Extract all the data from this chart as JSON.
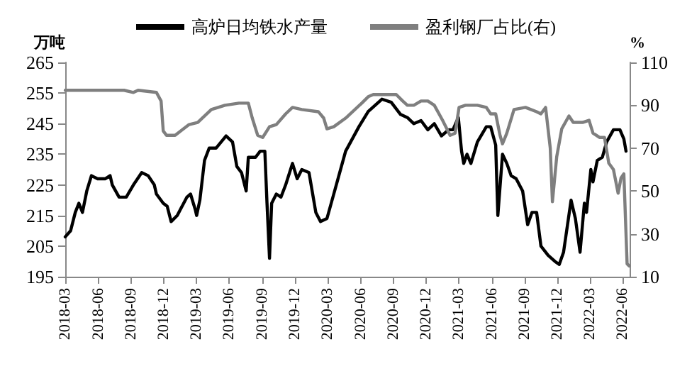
{
  "chart_data": {
    "type": "line",
    "ylabel": "万吨",
    "y2label": "%",
    "legend": "top",
    "marker": "none",
    "line_style": "solid",
    "grid": false,
    "xlim": [
      "2018-03-01",
      "2022-06-20"
    ],
    "xticks": [
      "2018-03",
      "2018-06",
      "2018-09",
      "2018-12",
      "2019-03",
      "2019-06",
      "2019-09",
      "2019-12",
      "2020-03",
      "2020-06",
      "2020-09",
      "2020-12",
      "2021-03",
      "2021-06",
      "2021-09",
      "2021-12",
      "2022-03",
      "2022-06"
    ],
    "ylim": [
      195,
      265
    ],
    "yticks": [
      195,
      205,
      215,
      225,
      235,
      245,
      255,
      265
    ],
    "y2lim": [
      10,
      110
    ],
    "y2ticks": [
      10,
      30,
      50,
      70,
      90,
      110
    ],
    "series": [
      {
        "name": "高炉日均铁水产量",
        "color": "#000000",
        "x": [
          "2018-03-01",
          "2018-03-16",
          "2018-03-29",
          "2018-04-08",
          "2018-04-18",
          "2018-04-30",
          "2018-05-13",
          "2018-05-30",
          "2018-06-21",
          "2018-07-04",
          "2018-07-10",
          "2018-07-29",
          "2018-08-18",
          "2018-09-07",
          "2018-09-30",
          "2018-10-18",
          "2018-11-04",
          "2018-11-10",
          "2018-11-29",
          "2018-12-10",
          "2018-12-21",
          "2019-01-07",
          "2019-02-03",
          "2019-02-13",
          "2019-02-26",
          "2019-03-02",
          "2019-03-11",
          "2019-03-24",
          "2019-04-06",
          "2019-04-25",
          "2019-05-23",
          "2019-06-10",
          "2019-06-22",
          "2019-07-05",
          "2019-07-18",
          "2019-07-24",
          "2019-08-13",
          "2019-08-26",
          "2019-09-08",
          "2019-09-14",
          "2019-09-21",
          "2019-09-27",
          "2019-10-10",
          "2019-10-23",
          "2019-11-05",
          "2019-11-24",
          "2019-12-07",
          "2019-12-20",
          "2020-01-09",
          "2020-01-28",
          "2020-02-10",
          "2020-02-28",
          "2020-03-18",
          "2020-04-20",
          "2020-05-27",
          "2020-06-22",
          "2020-07-30",
          "2020-08-25",
          "2020-09-20",
          "2020-10-09",
          "2020-10-27",
          "2020-11-16",
          "2020-12-05",
          "2020-12-23",
          "2021-01-12",
          "2021-02-01",
          "2021-02-13",
          "2021-02-28",
          "2021-03-09",
          "2021-03-15",
          "2021-03-24",
          "2021-04-04",
          "2021-04-22",
          "2021-05-17",
          "2021-05-29",
          "2021-06-12",
          "2021-06-18",
          "2021-07-01",
          "2021-07-13",
          "2021-07-25",
          "2021-08-08",
          "2021-08-26",
          "2021-09-09",
          "2021-09-21",
          "2021-10-04",
          "2021-10-16",
          "2021-11-05",
          "2021-11-24",
          "2021-12-06",
          "2021-12-18",
          "2022-01-08",
          "2022-01-20",
          "2022-02-02",
          "2022-02-14",
          "2022-02-20",
          "2022-03-04",
          "2022-03-10",
          "2022-03-22",
          "2022-04-05",
          "2022-04-17",
          "2022-05-06",
          "2022-05-24",
          "2022-06-04",
          "2022-06-10"
        ],
        "values": [
          208,
          210,
          216,
          219,
          216,
          223,
          228,
          227,
          227,
          228,
          225,
          221,
          221,
          225,
          229,
          228,
          225,
          222,
          219,
          218,
          213,
          215,
          221,
          222,
          217,
          215,
          220,
          233,
          237,
          237,
          241,
          239,
          231,
          229,
          223,
          234,
          234,
          236,
          236,
          219,
          201,
          219,
          222,
          221,
          225,
          232,
          227,
          230,
          229,
          216,
          213,
          214,
          222,
          236,
          244,
          249,
          253,
          252,
          248,
          247,
          245,
          246,
          243,
          245,
          241,
          243,
          243,
          247,
          236,
          232,
          235,
          232,
          239,
          244,
          244,
          238,
          215,
          235,
          232,
          228,
          227,
          223,
          212,
          216,
          216,
          205,
          202,
          200,
          199,
          203,
          220,
          214,
          203,
          219,
          216,
          230,
          226,
          233,
          234,
          239,
          243,
          243,
          240,
          236
        ]
      },
      {
        "name": "盈利钢厂占比(右)",
        "color": "#7f7f7f",
        "axis": "y2",
        "x": [
          "2018-03-01",
          "2018-06-21",
          "2018-08-12",
          "2018-09-07",
          "2018-09-20",
          "2018-11-10",
          "2018-11-23",
          "2018-11-29",
          "2018-12-08",
          "2019-01-01",
          "2019-02-09",
          "2019-03-05",
          "2019-04-12",
          "2019-05-20",
          "2019-06-28",
          "2019-07-24",
          "2019-08-04",
          "2019-08-19",
          "2019-09-02",
          "2019-09-21",
          "2019-10-10",
          "2019-11-05",
          "2019-11-24",
          "2019-12-20",
          "2020-02-04",
          "2020-02-19",
          "2020-02-28",
          "2020-03-18",
          "2020-04-20",
          "2020-06-04",
          "2020-06-22",
          "2020-07-06",
          "2020-07-24",
          "2020-08-13",
          "2020-09-08",
          "2020-09-26",
          "2020-10-09",
          "2020-10-27",
          "2020-11-16",
          "2020-12-05",
          "2020-12-23",
          "2021-01-15",
          "2021-02-05",
          "2021-02-19",
          "2021-03-02",
          "2021-03-20",
          "2021-04-22",
          "2021-05-17",
          "2021-05-29",
          "2021-06-12",
          "2021-06-24",
          "2021-07-01",
          "2021-07-13",
          "2021-08-02",
          "2021-09-03",
          "2021-10-04",
          "2021-10-16",
          "2021-10-29",
          "2021-11-11",
          "2021-11-17",
          "2021-11-29",
          "2021-12-13",
          "2022-01-02",
          "2022-01-14",
          "2022-02-09",
          "2022-02-27",
          "2022-03-10",
          "2022-03-28",
          "2022-04-11",
          "2022-04-23",
          "2022-05-06",
          "2022-05-19",
          "2022-05-27",
          "2022-06-04",
          "2022-06-13",
          "2022-06-19"
        ],
        "values": [
          97,
          97,
          97,
          96,
          97,
          96,
          92,
          78,
          76,
          76,
          81,
          82,
          88,
          90,
          91,
          91,
          84,
          76,
          75,
          80,
          81,
          86,
          89,
          88,
          87,
          84,
          79,
          80,
          84,
          91,
          94,
          95,
          95,
          95,
          95,
          92,
          90,
          90,
          92,
          92,
          90,
          83,
          76,
          77,
          89,
          90,
          90,
          89,
          86,
          86,
          76,
          72,
          77,
          88,
          89,
          87,
          86,
          89,
          70,
          45,
          66,
          79,
          85,
          82,
          82,
          83,
          77,
          75,
          75,
          63,
          60,
          49,
          56,
          58,
          16,
          15
        ]
      }
    ]
  }
}
